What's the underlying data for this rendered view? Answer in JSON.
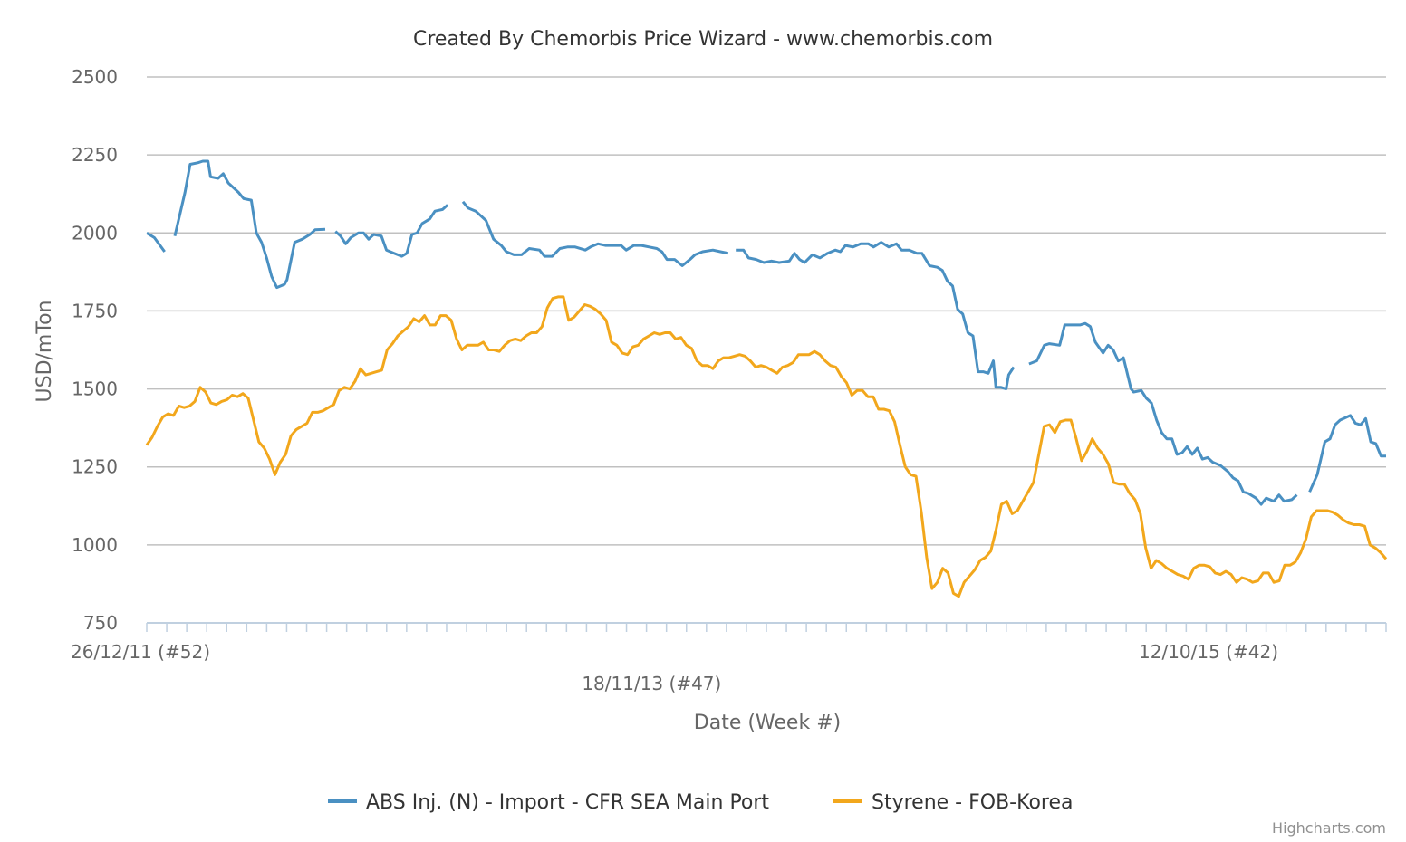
{
  "chart_data": {
    "type": "line",
    "title": "Created By Chemorbis Price Wizard - www.chemorbis.com",
    "xlabel": "Date (Week #)",
    "ylabel": "USD/mTon",
    "ylim": [
      750,
      2500
    ],
    "yticks": [
      750,
      1000,
      1250,
      1500,
      1750,
      2000,
      2250,
      2500
    ],
    "x_start": "26/12/11 (#52)",
    "x_end_index": 243,
    "x_tick_labels": [
      {
        "index": 0,
        "label": "26/12/11 (#52)"
      },
      {
        "index": 99,
        "label": "18/11/13 (#47)"
      },
      {
        "index": 198,
        "label": "12/10/15 (#42)"
      }
    ],
    "grid": true,
    "legend_position": "bottom",
    "series": [
      {
        "name": "ABS Inj. (N) - Import - CFR SEA Main Port",
        "color": "#4a90c2",
        "points": [
          [
            0,
            2000
          ],
          [
            2,
            1985
          ],
          [
            4,
            1940
          ],
          [
            null,
            null
          ],
          [
            6,
            1990
          ],
          [
            8,
            2130
          ],
          [
            10,
            2220
          ],
          [
            12,
            2225
          ],
          [
            13,
            2230
          ],
          [
            15,
            2230
          ],
          [
            16,
            2180
          ],
          [
            18,
            2175
          ],
          [
            19,
            2190
          ],
          [
            21,
            2160
          ],
          [
            23,
            2130
          ],
          [
            25,
            2110
          ],
          [
            26,
            2105
          ],
          [
            27,
            2000
          ],
          [
            28,
            1970
          ],
          [
            29,
            1920
          ],
          [
            30,
            1860
          ],
          [
            32,
            1825
          ],
          [
            34,
            1835
          ],
          [
            35,
            1850
          ],
          [
            36,
            1930
          ],
          [
            37,
            1970
          ],
          [
            38,
            1980
          ],
          [
            40,
            1995
          ],
          [
            42,
            2005
          ],
          [
            43,
            2010
          ],
          [
            45,
            2012
          ],
          [
            null,
            null
          ],
          [
            37,
            null
          ],
          [
            37,
            null
          ],
          [
            37,
            null
          ],
          [
            null,
            null
          ],
          [
            37,
            null
          ]
        ]
      },
      {
        "name": "Styrene - FOB-Korea",
        "color": "#f2a71c",
        "points": []
      }
    ],
    "abs_segments": [
      [
        [
          0,
          2000
        ],
        [
          2,
          1985
        ],
        [
          4,
          1940
        ]
      ],
      [
        [
          6,
          1990
        ],
        [
          8,
          2130
        ],
        [
          10,
          2220
        ],
        [
          12,
          2225
        ],
        [
          13,
          2230
        ],
        [
          15,
          2230
        ],
        [
          16,
          2180
        ],
        [
          18,
          2175
        ],
        [
          19,
          2190
        ],
        [
          21,
          2160
        ],
        [
          23,
          2130
        ],
        [
          25,
          2110
        ],
        [
          26,
          2105
        ],
        [
          27,
          2000
        ],
        [
          28,
          1970
        ],
        [
          29,
          1920
        ],
        [
          30,
          1860
        ],
        [
          32,
          1825
        ],
        [
          34,
          1835
        ],
        [
          35,
          1850
        ],
        [
          36,
          1930
        ],
        [
          37,
          1970
        ],
        [
          38,
          1980
        ],
        [
          40,
          1995
        ],
        [
          42,
          2005
        ],
        [
          43,
          2010
        ],
        [
          45,
          2012
        ]
      ],
      [
        [
          47,
          2005
        ],
        [
          49,
          1990
        ],
        [
          50,
          1965
        ],
        [
          52,
          1985
        ],
        [
          54,
          2000
        ],
        [
          56,
          1995
        ],
        [
          57,
          1980
        ],
        [
          59,
          1995
        ],
        [
          61,
          1990
        ],
        [
          63,
          1945
        ],
        [
          65,
          1930
        ],
        [
          67,
          1925
        ],
        [
          69,
          1935
        ],
        [
          71,
          1995
        ],
        [
          73,
          2000
        ],
        [
          75,
          2030
        ],
        [
          77,
          2045
        ],
        [
          79,
          2070
        ],
        [
          81,
          2075
        ],
        [
          82,
          2090
        ]
      ],
      [
        [
          84,
          2100
        ],
        [
          86,
          2080
        ],
        [
          88,
          2060
        ],
        [
          90,
          2030
        ],
        [
          92,
          1980
        ],
        [
          94,
          1960
        ],
        [
          96,
          1935
        ],
        [
          98,
          1925
        ],
        [
          100,
          1930
        ],
        [
          102,
          1950
        ],
        [
          104,
          1945
        ],
        [
          106,
          1925
        ],
        [
          108,
          1925
        ],
        [
          110,
          1950
        ],
        [
          112,
          1955
        ],
        [
          114,
          1955
        ],
        [
          116,
          1945
        ],
        [
          118,
          1955
        ],
        [
          120,
          1965
        ],
        [
          122,
          1960
        ],
        [
          124,
          1960
        ],
        [
          126,
          1960
        ],
        [
          128,
          1945
        ],
        [
          130,
          1955
        ],
        [
          132,
          1960
        ],
        [
          134,
          1955
        ],
        [
          136,
          1950
        ],
        [
          138,
          1935
        ],
        [
          140,
          1915
        ],
        [
          142,
          1915
        ],
        [
          144,
          1895
        ],
        [
          146,
          1915
        ],
        [
          148,
          1935
        ],
        [
          150,
          1945
        ],
        [
          152,
          1945
        ],
        [
          154,
          1940
        ],
        [
          156,
          1935
        ]
      ],
      [
        [
          158,
          1945
        ],
        [
          160,
          1940
        ],
        [
          162,
          1915
        ],
        [
          164,
          1910
        ],
        [
          166,
          1905
        ],
        [
          168,
          1910
        ],
        [
          170,
          1905
        ],
        [
          172,
          1910
        ],
        [
          174,
          1935
        ],
        [
          176,
          1910
        ],
        [
          178,
          1930
        ],
        [
          180,
          1920
        ],
        [
          182,
          1935
        ],
        [
          184,
          1945
        ],
        [
          186,
          1940
        ],
        [
          187,
          1960
        ],
        [
          189,
          1955
        ],
        [
          191,
          1970
        ],
        [
          193,
          1965
        ],
        [
          195,
          1970
        ],
        [
          197,
          1955
        ],
        [
          199,
          1965
        ],
        [
          201,
          1945
        ],
        [
          203,
          1945
        ],
        [
          205,
          1930
        ],
        [
          207,
          1930
        ],
        [
          209,
          1890
        ],
        [
          211,
          1885
        ],
        [
          213,
          1870
        ],
        [
          215,
          1820
        ],
        [
          216,
          1750
        ],
        [
          218,
          1730
        ],
        [
          219,
          1680
        ],
        [
          221,
          1670
        ],
        [
          222,
          1550
        ],
        [
          224,
          1555
        ],
        [
          226,
          1550
        ],
        [
          227,
          1585
        ],
        [
          228,
          1505
        ],
        [
          230,
          1505
        ],
        [
          231,
          1500
        ],
        [
          232,
          1550
        ],
        [
          234,
          1570
        ]
      ],
      [
        [
          236,
          1580
        ],
        [
          238,
          1590
        ],
        [
          240,
          1640
        ],
        [
          242,
          1645
        ],
        [
          244,
          1640
        ],
        [
          245,
          1705
        ],
        [
          247,
          1705
        ],
        [
          249,
          1705
        ],
        [
          250,
          1710
        ],
        [
          251,
          1700
        ],
        [
          253,
          1650
        ]
      ]
    ],
    "styrene_points": []
  }
}
